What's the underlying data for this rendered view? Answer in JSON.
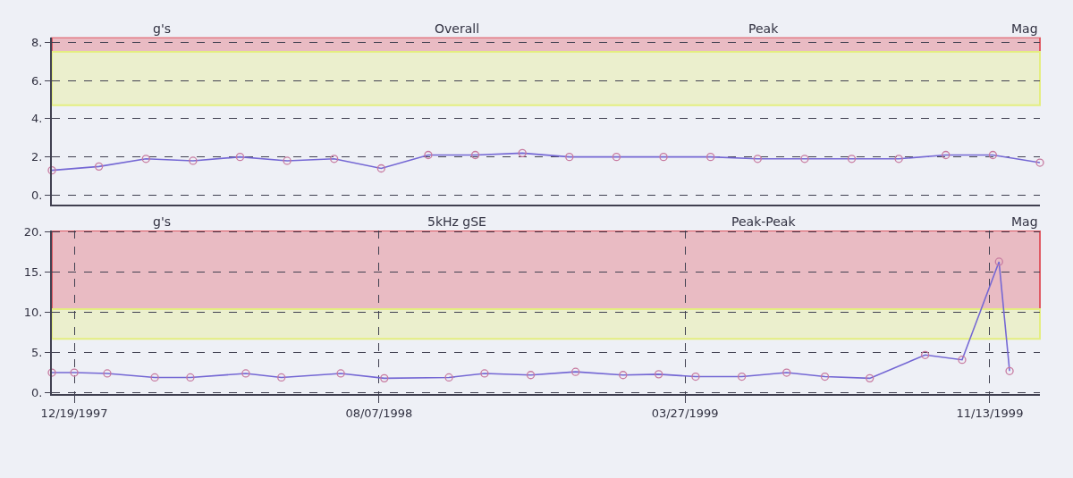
{
  "chart_data": [
    {
      "type": "line",
      "ylabel": "g's",
      "annotations": [
        "Overall",
        "Peak",
        "Mag"
      ],
      "categories": [
        null,
        null,
        null,
        null,
        null,
        null,
        null,
        null,
        null,
        null,
        null,
        null,
        null,
        null,
        null,
        null,
        null,
        null,
        null,
        null,
        null,
        null
      ],
      "series": [
        {
          "color": "#7467d4",
          "values": [
            1.3,
            1.5,
            1.9,
            1.8,
            2.0,
            1.8,
            1.9,
            1.4,
            2.1,
            2.1,
            2.2,
            2.0,
            2.0,
            2.0,
            2.0,
            1.9,
            1.9,
            1.9,
            1.9,
            2.1,
            2.1,
            1.7
          ]
        }
      ],
      "ylim": [
        -0.5,
        8.25
      ],
      "yticks": [
        {
          "value": 0,
          "label": "0."
        },
        {
          "value": 2,
          "label": "2."
        },
        {
          "value": 4,
          "label": "4."
        },
        {
          "value": 6,
          "label": "6."
        },
        {
          "value": 8,
          "label": "8."
        }
      ],
      "bands": [
        {
          "axis": "y",
          "from": 7.5,
          "to": 8.25,
          "color": "#e05a64"
        },
        {
          "axis": "y",
          "from": 4.7,
          "to": 7.5,
          "color": "#e4ee80"
        }
      ],
      "grid": true,
      "marker": "circle",
      "line_style": "solid",
      "tick_labels": "y"
    },
    {
      "type": "line",
      "ylabel": "g's",
      "annotations": [
        "5kHz gSE",
        "Peak-Peak",
        "Mag"
      ],
      "series": [
        {
          "color": "#7467d4",
          "x": [
            "1997-12-02",
            "1997-12-19",
            "1998-01-13",
            "1998-02-18",
            "1998-03-17",
            "1998-04-28",
            "1998-05-25",
            "1998-07-09",
            "1998-08-11",
            "1998-09-29",
            "1998-10-26",
            "1998-11-30",
            "1999-01-03",
            "1999-02-08",
            "1999-03-07",
            "1999-04-04",
            "1999-05-09",
            "1999-06-12",
            "1999-07-11",
            "1999-08-14",
            "1999-09-25",
            "1999-10-23",
            "1999-11-20",
            "1999-11-28"
          ],
          "values": [
            2.5,
            2.5,
            2.4,
            1.9,
            1.9,
            2.4,
            1.9,
            2.4,
            1.8,
            1.9,
            2.4,
            2.2,
            2.6,
            2.2,
            2.3,
            2.0,
            2.0,
            2.5,
            2.0,
            1.8,
            4.7,
            4.1,
            16.3,
            2.7
          ]
        }
      ],
      "xlim": [
        "1997-12-02",
        "1999-12-21"
      ],
      "xticks": [
        {
          "value": "1997-12-19",
          "label": "12/19/1997"
        },
        {
          "value": "1998-08-07",
          "label": "08/07/1998"
        },
        {
          "value": "1999-03-27",
          "label": "03/27/1999"
        },
        {
          "value": "1999-11-13",
          "label": "11/13/1999"
        }
      ],
      "ylim": [
        -0.2,
        20.2
      ],
      "yticks": [
        {
          "value": 0,
          "label": "0."
        },
        {
          "value": 5,
          "label": "5."
        },
        {
          "value": 10,
          "label": "10."
        },
        {
          "value": 15,
          "label": "15."
        },
        {
          "value": 20,
          "label": "20."
        }
      ],
      "bands": [
        {
          "axis": "y",
          "from": 10.4,
          "to": 20.2,
          "color": "#e05a64"
        },
        {
          "axis": "y",
          "from": 6.7,
          "to": 10.4,
          "color": "#e4ee80"
        }
      ],
      "grid": true,
      "marker": "circle",
      "line_style": "solid"
    }
  ]
}
